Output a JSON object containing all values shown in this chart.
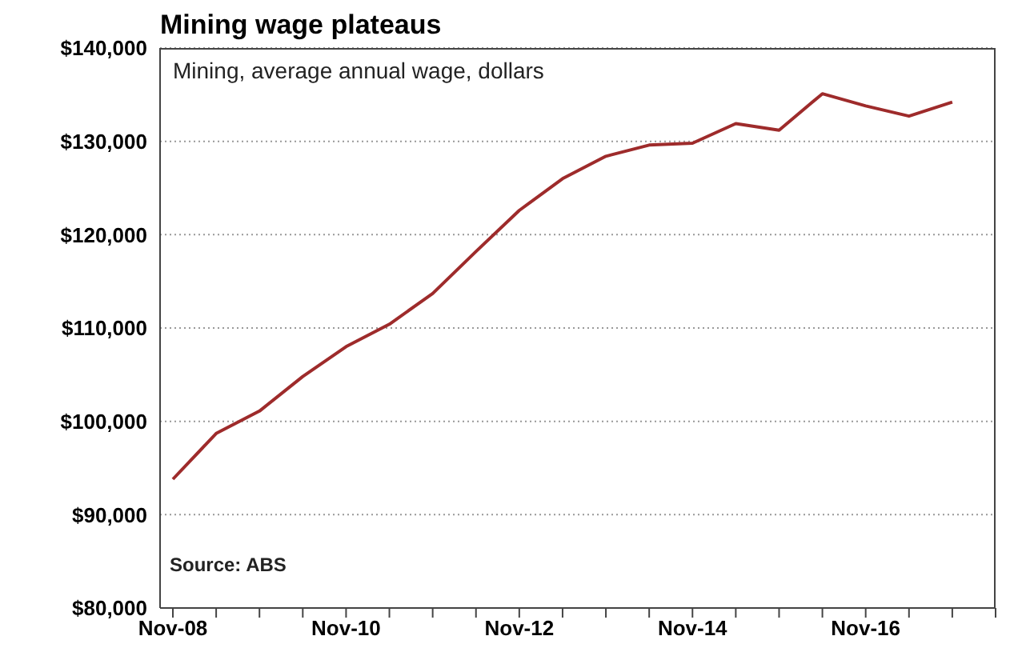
{
  "chart_data": {
    "type": "line",
    "title": "Mining wage plateaus",
    "subtitle": "Mining, average annual wage, dollars",
    "annotations": [
      "Source: ABS"
    ],
    "categories": [
      "Nov-08",
      null,
      null,
      null,
      "Nov-10",
      null,
      null,
      null,
      "Nov-12",
      null,
      null,
      null,
      "Nov-14",
      null,
      null,
      null,
      "Nov-16",
      null,
      null,
      null
    ],
    "series": [
      {
        "color": "#9e2b2b",
        "values": [
          93800,
          98700,
          101100,
          104800,
          108000,
          110400,
          113700,
          118200,
          122600,
          126000,
          128400,
          129600,
          129800,
          131900,
          131200,
          135100,
          133800,
          132700,
          134200,
          null
        ]
      }
    ],
    "ylim": [
      80000,
      140000
    ],
    "yticks": [
      {
        "value": 80000,
        "label": "$80,000"
      },
      {
        "value": 90000,
        "label": "$90,000"
      },
      {
        "value": 100000,
        "label": "$100,000"
      },
      {
        "value": 110000,
        "label": "$110,000"
      },
      {
        "value": 120000,
        "label": "$120,000"
      },
      {
        "value": 130000,
        "label": "$130,000"
      },
      {
        "value": 140000,
        "label": "$140,000"
      }
    ],
    "grid": "y",
    "legend": false,
    "marker": "none",
    "line_style": "solid"
  }
}
